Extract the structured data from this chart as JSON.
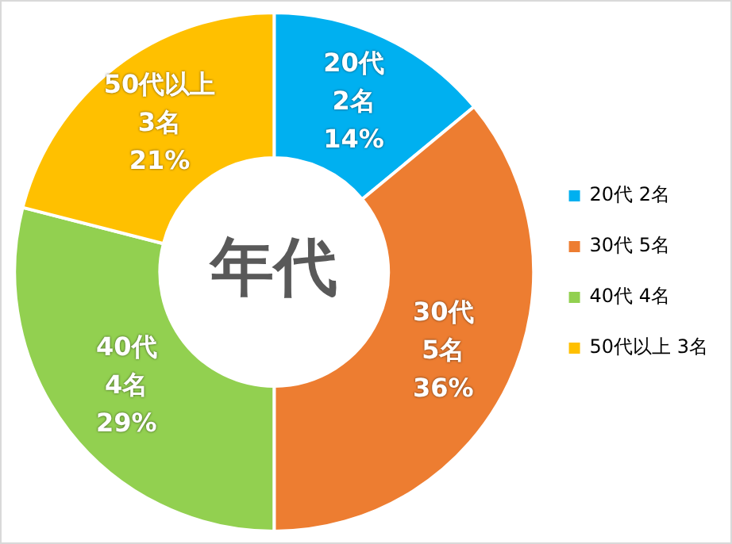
{
  "chart_data": {
    "type": "donut",
    "title": "年代",
    "categories": [
      "20代 2名",
      "30代 5名",
      "40代 4名",
      "50代以上 3名"
    ],
    "values": [
      14,
      36,
      29,
      21
    ],
    "colors": [
      "#00b0f0",
      "#ed7d31",
      "#92d050",
      "#ffc000"
    ],
    "value_labels": [
      "14%",
      "36%",
      "29%",
      "21%"
    ],
    "legend": "right"
  }
}
